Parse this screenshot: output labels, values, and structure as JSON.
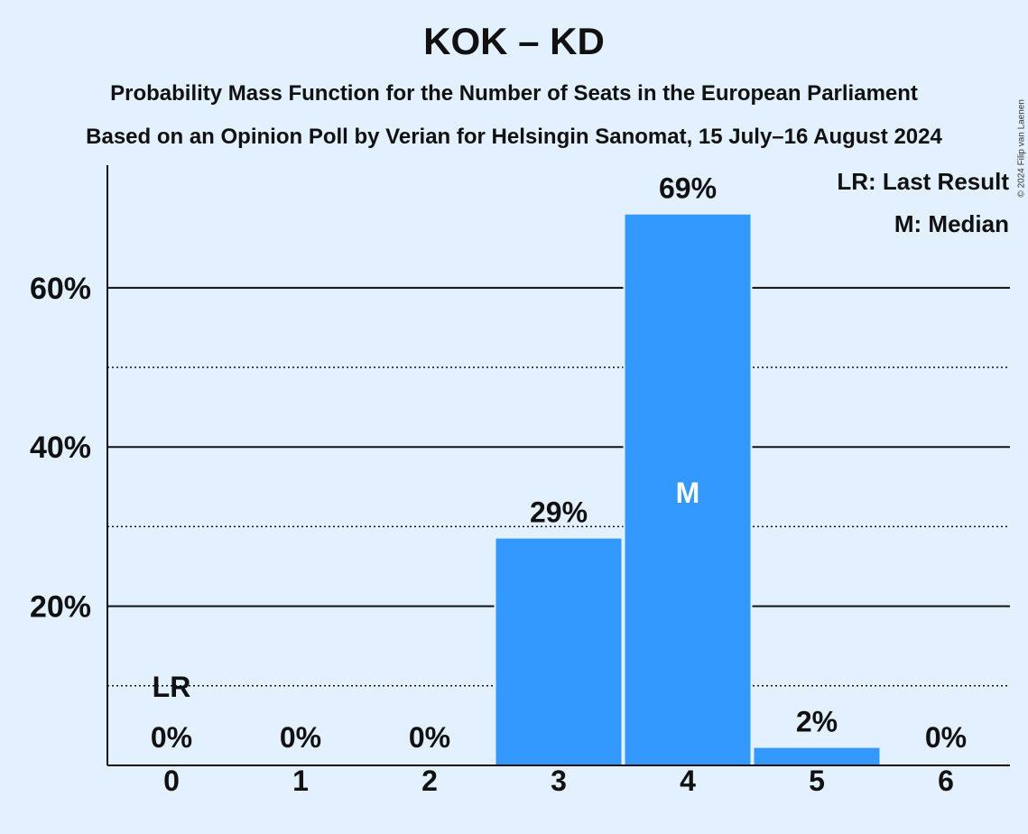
{
  "chart_data": {
    "type": "bar",
    "title": "KOK – KD",
    "subtitle": "Probability Mass Function for the Number of Seats in the European Parliament",
    "subtitle2": "Based on an Opinion Poll by Verian for Helsingin Sanomat, 15 July–16 August 2024",
    "categories": [
      "0",
      "1",
      "2",
      "3",
      "4",
      "5",
      "6"
    ],
    "values": [
      0,
      0,
      0,
      28.5,
      69.2,
      2.2,
      0
    ],
    "value_labels": [
      "0%",
      "0%",
      "0%",
      "29%",
      "69%",
      "2%",
      "0%"
    ],
    "yticks": [
      20,
      40,
      60
    ],
    "ytick_labels": [
      "20%",
      "40%",
      "60%"
    ],
    "minor_gridlines": [
      10,
      30,
      50
    ],
    "ylim": [
      0,
      75.4
    ],
    "last_result_index": 0,
    "last_result_marker": "LR",
    "median_index": 4,
    "median_marker": "M",
    "legend": [
      "LR: Last Result",
      "M: Median"
    ],
    "legend_position": "top-right",
    "bar_color": "#3399ff",
    "copyright": "© 2024 Filip van Laenen"
  }
}
